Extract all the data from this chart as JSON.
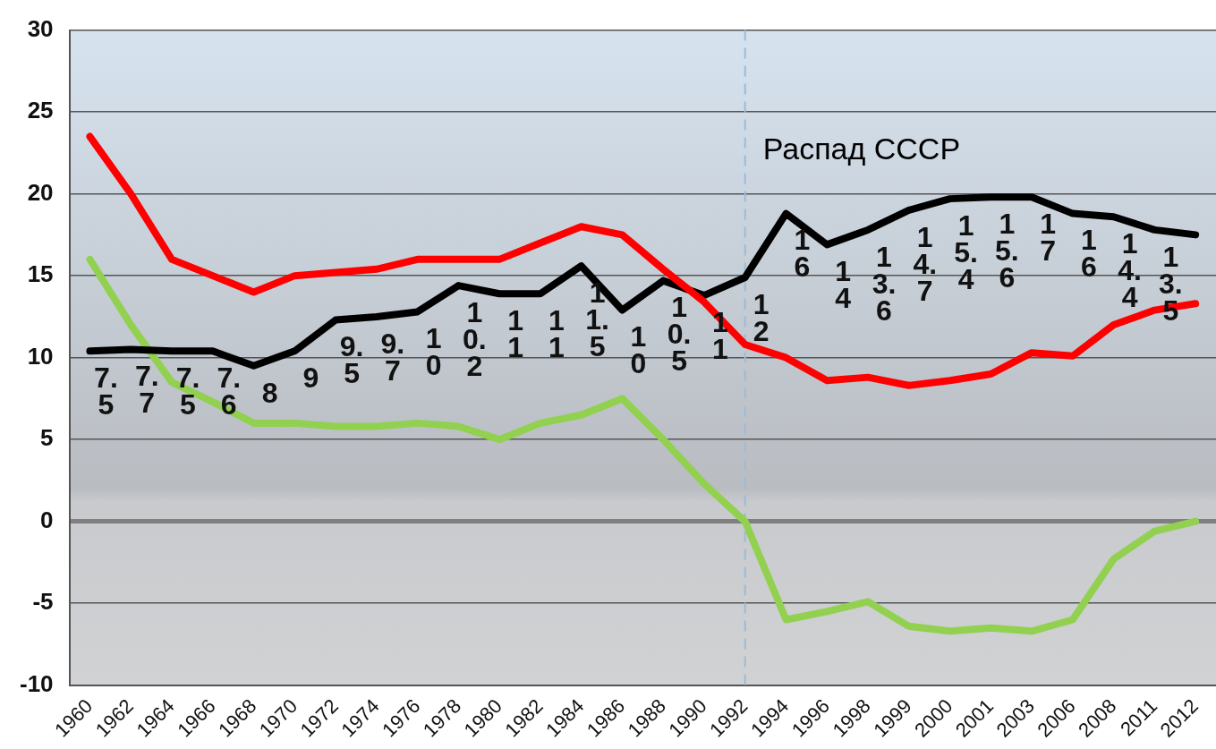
{
  "chart_data": {
    "type": "line",
    "categories": [
      "1960",
      "1962",
      "1964",
      "1966",
      "1968",
      "1970",
      "1972",
      "1974",
      "1976",
      "1978",
      "1980",
      "1982",
      "1984",
      "1986",
      "1988",
      "1990",
      "1992",
      "1994",
      "1996",
      "1998",
      "1999",
      "2000",
      "2001",
      "2003",
      "2006",
      "2008",
      "2011",
      "2012"
    ],
    "series": [
      {
        "color": "#ff0000",
        "values": [
          23.5,
          20.0,
          16.0,
          15.0,
          14.0,
          15.0,
          15.2,
          15.4,
          16.0,
          16.0,
          16.0,
          17.0,
          18.0,
          17.5,
          15.4,
          13.4,
          10.8,
          10.0,
          8.6,
          8.8,
          8.3,
          8.6,
          9.0,
          10.3,
          10.1,
          12.0,
          12.9,
          13.3
        ]
      },
      {
        "color": "#000000",
        "values": [
          10.4,
          10.5,
          10.4,
          10.4,
          9.5,
          10.4,
          12.3,
          12.5,
          12.8,
          14.4,
          13.9,
          13.9,
          15.6,
          12.9,
          14.7,
          13.8,
          14.9,
          18.8,
          16.9,
          17.8,
          19.0,
          19.7,
          19.8,
          19.8,
          18.8,
          18.6,
          17.8,
          17.5
        ]
      },
      {
        "color": "#92d050",
        "values": [
          16.0,
          12.0,
          8.5,
          7.3,
          6.0,
          6.0,
          5.8,
          5.8,
          6.0,
          5.8,
          5.0,
          6.0,
          6.5,
          7.5,
          5.0,
          2.3,
          0,
          -6.0,
          -5.5,
          -4.9,
          -6.4,
          -6.7,
          -6.5,
          -6.7,
          -6.0,
          -2.3,
          -0.6,
          0
        ]
      }
    ],
    "ylim": [
      -10,
      30
    ],
    "yticks": [
      -10,
      -5,
      0,
      5,
      10,
      15,
      20,
      25,
      30
    ],
    "grid": "y",
    "legend": false,
    "marker": "none",
    "line_style": "solid",
    "ref_lines": [
      {
        "axis": "x",
        "value": "1992",
        "label": "Распад СССР",
        "color": "#9dbbd8",
        "line_style": "dashed"
      }
    ],
    "annotations": [
      "7.5",
      "7.7",
      "7.5",
      "7.6",
      "8",
      "9",
      "9.5",
      "9.7",
      "10",
      "10.2",
      "11",
      "11",
      "11.5",
      "10",
      "10.5",
      "11",
      "12",
      "16",
      "14",
      "13.6",
      "14.7",
      "15.4",
      "15.6",
      "17",
      "16",
      "14.4",
      "13.5"
    ]
  }
}
